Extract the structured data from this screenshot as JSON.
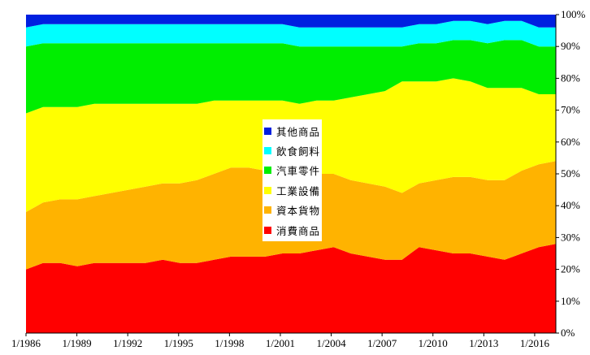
{
  "chart_data": {
    "type": "area",
    "stacked": true,
    "normalized": true,
    "xlim": [
      "1/1986",
      "4/2017"
    ],
    "ylim": [
      0,
      1
    ],
    "y_ticks": [
      "0%",
      "10%",
      "20%",
      "30%",
      "40%",
      "50%",
      "60%",
      "70%",
      "80%",
      "90%",
      "100%"
    ],
    "x_ticks": [
      "1/1986",
      "1/1989",
      "1/1992",
      "1/1995",
      "1/1998",
      "1/2001",
      "1/2004",
      "1/2007",
      "1/2010",
      "1/2013",
      "1/2016"
    ],
    "legend_position": "center",
    "x": [
      "1986",
      "1987",
      "1988",
      "1989",
      "1990",
      "1991",
      "1992",
      "1993",
      "1994",
      "1995",
      "1996",
      "1997",
      "1998",
      "1999",
      "2000",
      "2001",
      "2002",
      "2003",
      "2004",
      "2005",
      "2006",
      "2007",
      "2008",
      "2009",
      "2010",
      "2011",
      "2012",
      "2013",
      "2014",
      "2015",
      "2016",
      "2017"
    ],
    "series": [
      {
        "name": "消費商品",
        "color": "#ff0000",
        "values": [
          0.2,
          0.22,
          0.22,
          0.21,
          0.22,
          0.22,
          0.22,
          0.22,
          0.23,
          0.22,
          0.22,
          0.23,
          0.24,
          0.24,
          0.24,
          0.25,
          0.25,
          0.26,
          0.27,
          0.25,
          0.24,
          0.23,
          0.23,
          0.27,
          0.26,
          0.25,
          0.25,
          0.24,
          0.23,
          0.25,
          0.27,
          0.28
        ]
      },
      {
        "name": "資本貨物",
        "color": "#ffb300",
        "values": [
          0.18,
          0.19,
          0.2,
          0.21,
          0.21,
          0.22,
          0.23,
          0.24,
          0.24,
          0.25,
          0.26,
          0.27,
          0.28,
          0.28,
          0.27,
          0.26,
          0.25,
          0.24,
          0.23,
          0.23,
          0.23,
          0.23,
          0.21,
          0.2,
          0.22,
          0.24,
          0.24,
          0.24,
          0.25,
          0.26,
          0.26,
          0.26
        ]
      },
      {
        "name": "工業設備",
        "color": "#ffff00",
        "values": [
          0.31,
          0.3,
          0.29,
          0.29,
          0.29,
          0.28,
          0.27,
          0.26,
          0.25,
          0.25,
          0.24,
          0.23,
          0.21,
          0.21,
          0.22,
          0.22,
          0.22,
          0.23,
          0.23,
          0.26,
          0.28,
          0.3,
          0.35,
          0.32,
          0.31,
          0.31,
          0.3,
          0.29,
          0.29,
          0.26,
          0.22,
          0.21
        ]
      },
      {
        "name": "汽車零件",
        "color": "#00ee00",
        "values": [
          0.21,
          0.2,
          0.2,
          0.2,
          0.19,
          0.19,
          0.19,
          0.19,
          0.19,
          0.19,
          0.19,
          0.18,
          0.18,
          0.18,
          0.18,
          0.18,
          0.18,
          0.17,
          0.17,
          0.16,
          0.15,
          0.14,
          0.11,
          0.12,
          0.12,
          0.12,
          0.13,
          0.14,
          0.15,
          0.15,
          0.15,
          0.15
        ]
      },
      {
        "name": "飲食飼料",
        "color": "#00ffff",
        "values": [
          0.06,
          0.06,
          0.06,
          0.06,
          0.06,
          0.06,
          0.06,
          0.06,
          0.06,
          0.06,
          0.06,
          0.06,
          0.06,
          0.06,
          0.06,
          0.06,
          0.06,
          0.06,
          0.06,
          0.06,
          0.06,
          0.06,
          0.06,
          0.06,
          0.06,
          0.06,
          0.06,
          0.06,
          0.06,
          0.06,
          0.06,
          0.06
        ]
      },
      {
        "name": "其他商品",
        "color": "#0020e0",
        "values": [
          0.04,
          0.03,
          0.03,
          0.03,
          0.03,
          0.03,
          0.03,
          0.03,
          0.03,
          0.03,
          0.03,
          0.03,
          0.03,
          0.03,
          0.03,
          0.03,
          0.04,
          0.04,
          0.04,
          0.04,
          0.04,
          0.04,
          0.04,
          0.03,
          0.03,
          0.02,
          0.02,
          0.03,
          0.02,
          0.02,
          0.04,
          0.04
        ]
      }
    ],
    "legend_order": [
      "其他商品",
      "飲食飼料",
      "汽車零件",
      "工業設備",
      "資本貨物",
      "消費商品"
    ]
  }
}
